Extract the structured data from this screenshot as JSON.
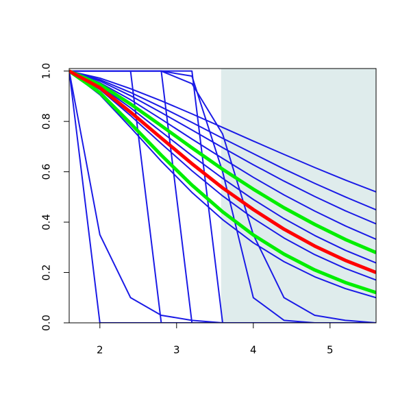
{
  "chart_data": {
    "type": "line",
    "x": [
      1.6,
      2.0,
      2.4,
      2.8,
      3.2,
      3.6,
      4.0,
      4.4,
      4.8,
      5.2,
      5.6
    ],
    "xlim": [
      1.6,
      5.6
    ],
    "ylim": [
      0,
      1.01
    ],
    "xticks": [
      2,
      3,
      4,
      5
    ],
    "yticks": [
      {
        "value": 0,
        "label": "0.0"
      },
      0.2,
      0.4,
      0.6,
      0.8,
      {
        "value": 1,
        "label": "1.0"
      }
    ],
    "shaded_xlim": [
      3.58,
      5.6
    ],
    "shade_color": "#dfecec",
    "series": [
      {
        "color": "#1a1ae6",
        "values": [
          1,
          0.972,
          0.93,
          0.882,
          0.83,
          0.776,
          0.722,
          0.669,
          0.617,
          0.567,
          0.52
        ]
      },
      {
        "color": "#1a1ae6",
        "values": [
          1,
          0.966,
          0.915,
          0.857,
          0.796,
          0.733,
          0.672,
          0.611,
          0.554,
          0.5,
          0.449
        ]
      },
      {
        "color": "#1a1ae6",
        "values": [
          1,
          0.961,
          0.902,
          0.835,
          0.766,
          0.696,
          0.628,
          0.563,
          0.502,
          0.445,
          0.393
        ]
      },
      {
        "color": "#1a1ae6",
        "values": [
          1,
          0.954,
          0.886,
          0.809,
          0.73,
          0.653,
          0.578,
          0.508,
          0.444,
          0.385,
          0.332
        ]
      },
      {
        "color": "#1a1ae6",
        "values": [
          1,
          0.941,
          0.854,
          0.759,
          0.664,
          0.574,
          0.49,
          0.414,
          0.347,
          0.288,
          0.238
        ]
      },
      {
        "color": "#1a1ae6",
        "values": [
          1,
          0.927,
          0.823,
          0.712,
          0.604,
          0.504,
          0.415,
          0.337,
          0.271,
          0.216,
          0.17
        ]
      },
      {
        "color": "#1a1ae6",
        "values": [
          1,
          0.906,
          0.776,
          0.642,
          0.518,
          0.41,
          0.318,
          0.243,
          0.183,
          0.136,
          0.1
        ]
      },
      {
        "color": "#1a1ae6",
        "values": [
          1,
          0.35,
          0.1,
          0.03,
          0.01,
          0,
          0,
          0,
          0,
          0,
          0
        ]
      },
      {
        "color": "#1a1ae6",
        "values": [
          1,
          0,
          0,
          0,
          0,
          0,
          0,
          0,
          0,
          0,
          0
        ]
      },
      {
        "color": "#1a1ae6",
        "values": [
          1,
          1,
          1,
          0,
          0,
          0,
          0,
          0,
          0,
          0,
          0
        ]
      },
      {
        "color": "#1a1ae6",
        "values": [
          1,
          1,
          1,
          1,
          0,
          0,
          0,
          0,
          0,
          0,
          0
        ]
      },
      {
        "color": "#1a1ae6",
        "values": [
          1,
          1,
          1,
          1,
          1,
          0,
          0,
          0,
          0,
          0,
          0
        ]
      },
      {
        "color": "#1a1ae6",
        "values": [
          1,
          1,
          1,
          1,
          0.98,
          0.6,
          0.1,
          0.01,
          0,
          0,
          0
        ]
      },
      {
        "color": "#1a1ae6",
        "values": [
          1,
          1,
          1,
          1,
          0.95,
          0.75,
          0.35,
          0.1,
          0.03,
          0.01,
          0
        ]
      },
      {
        "color": "#00ee00",
        "width": 5,
        "values": [
          1,
          0.947,
          0.869,
          0.783,
          0.695,
          0.61,
          0.531,
          0.457,
          0.391,
          0.331,
          0.279
        ]
      },
      {
        "color": "#00ee00",
        "width": 5,
        "values": [
          1,
          0.914,
          0.792,
          0.666,
          0.547,
          0.441,
          0.349,
          0.273,
          0.21,
          0.16,
          0.12
        ]
      },
      {
        "color": "#ff0000",
        "width": 5,
        "values": [
          1,
          0.934,
          0.837,
          0.734,
          0.632,
          0.536,
          0.45,
          0.372,
          0.305,
          0.248,
          0.2
        ]
      }
    ]
  }
}
